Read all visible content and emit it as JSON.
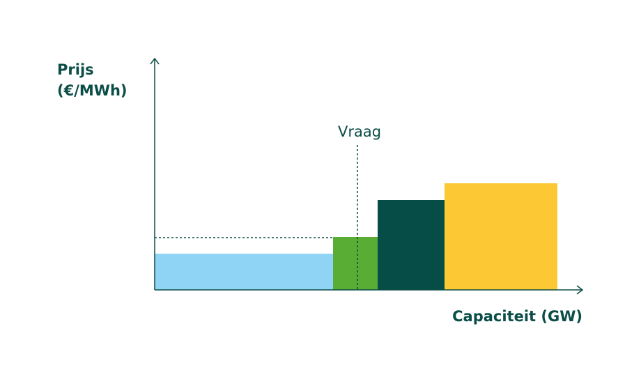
{
  "axis_labels": {
    "y": [
      "Prijs",
      "(€/MWh)"
    ],
    "x": "Capaciteit (GW)"
  },
  "annotations": {
    "demand": "Vraag"
  }
}
